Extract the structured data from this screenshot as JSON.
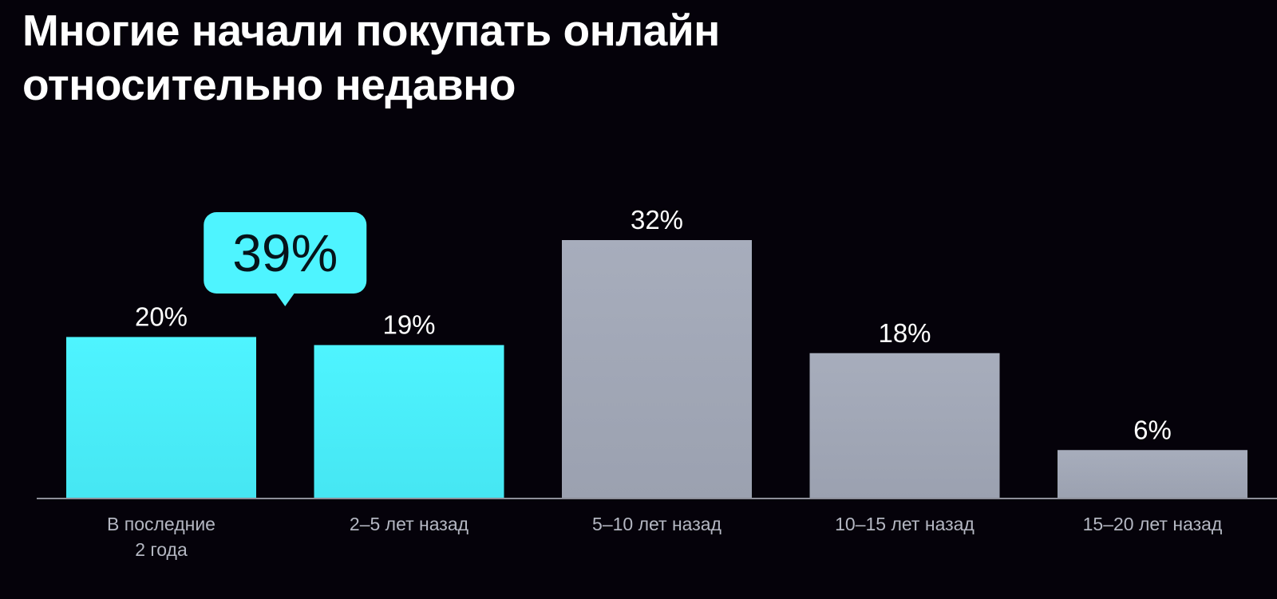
{
  "title": {
    "lines": [
      "Многие начали покупать онлайн",
      "относительно недавно"
    ]
  },
  "colors": {
    "background": "#05020a",
    "highlight": "#4ef4ff",
    "muted": "#a7adbc",
    "axis": "#8d8f99"
  },
  "chart_data": {
    "type": "bar",
    "title": "Многие начали покупать онлайн относительно недавно",
    "categories": [
      [
        "В последние",
        "2 года"
      ],
      [
        "2–5 лет назад"
      ],
      [
        "5–10 лет назад"
      ],
      [
        "10–15 лет назад"
      ],
      [
        "15–20 лет назад"
      ]
    ],
    "values": [
      20,
      19,
      32,
      18,
      6
    ],
    "value_labels": [
      "20%",
      "19%",
      "32%",
      "18%",
      "6%"
    ],
    "highlighted": [
      true,
      true,
      false,
      false,
      false
    ],
    "unit": "%",
    "ylim": [
      0,
      32
    ],
    "xlabel": "",
    "ylabel": "",
    "grid": false,
    "legend": "none",
    "annotations": [
      {
        "text": "39%",
        "covers_categories": [
          0,
          1
        ]
      }
    ]
  }
}
